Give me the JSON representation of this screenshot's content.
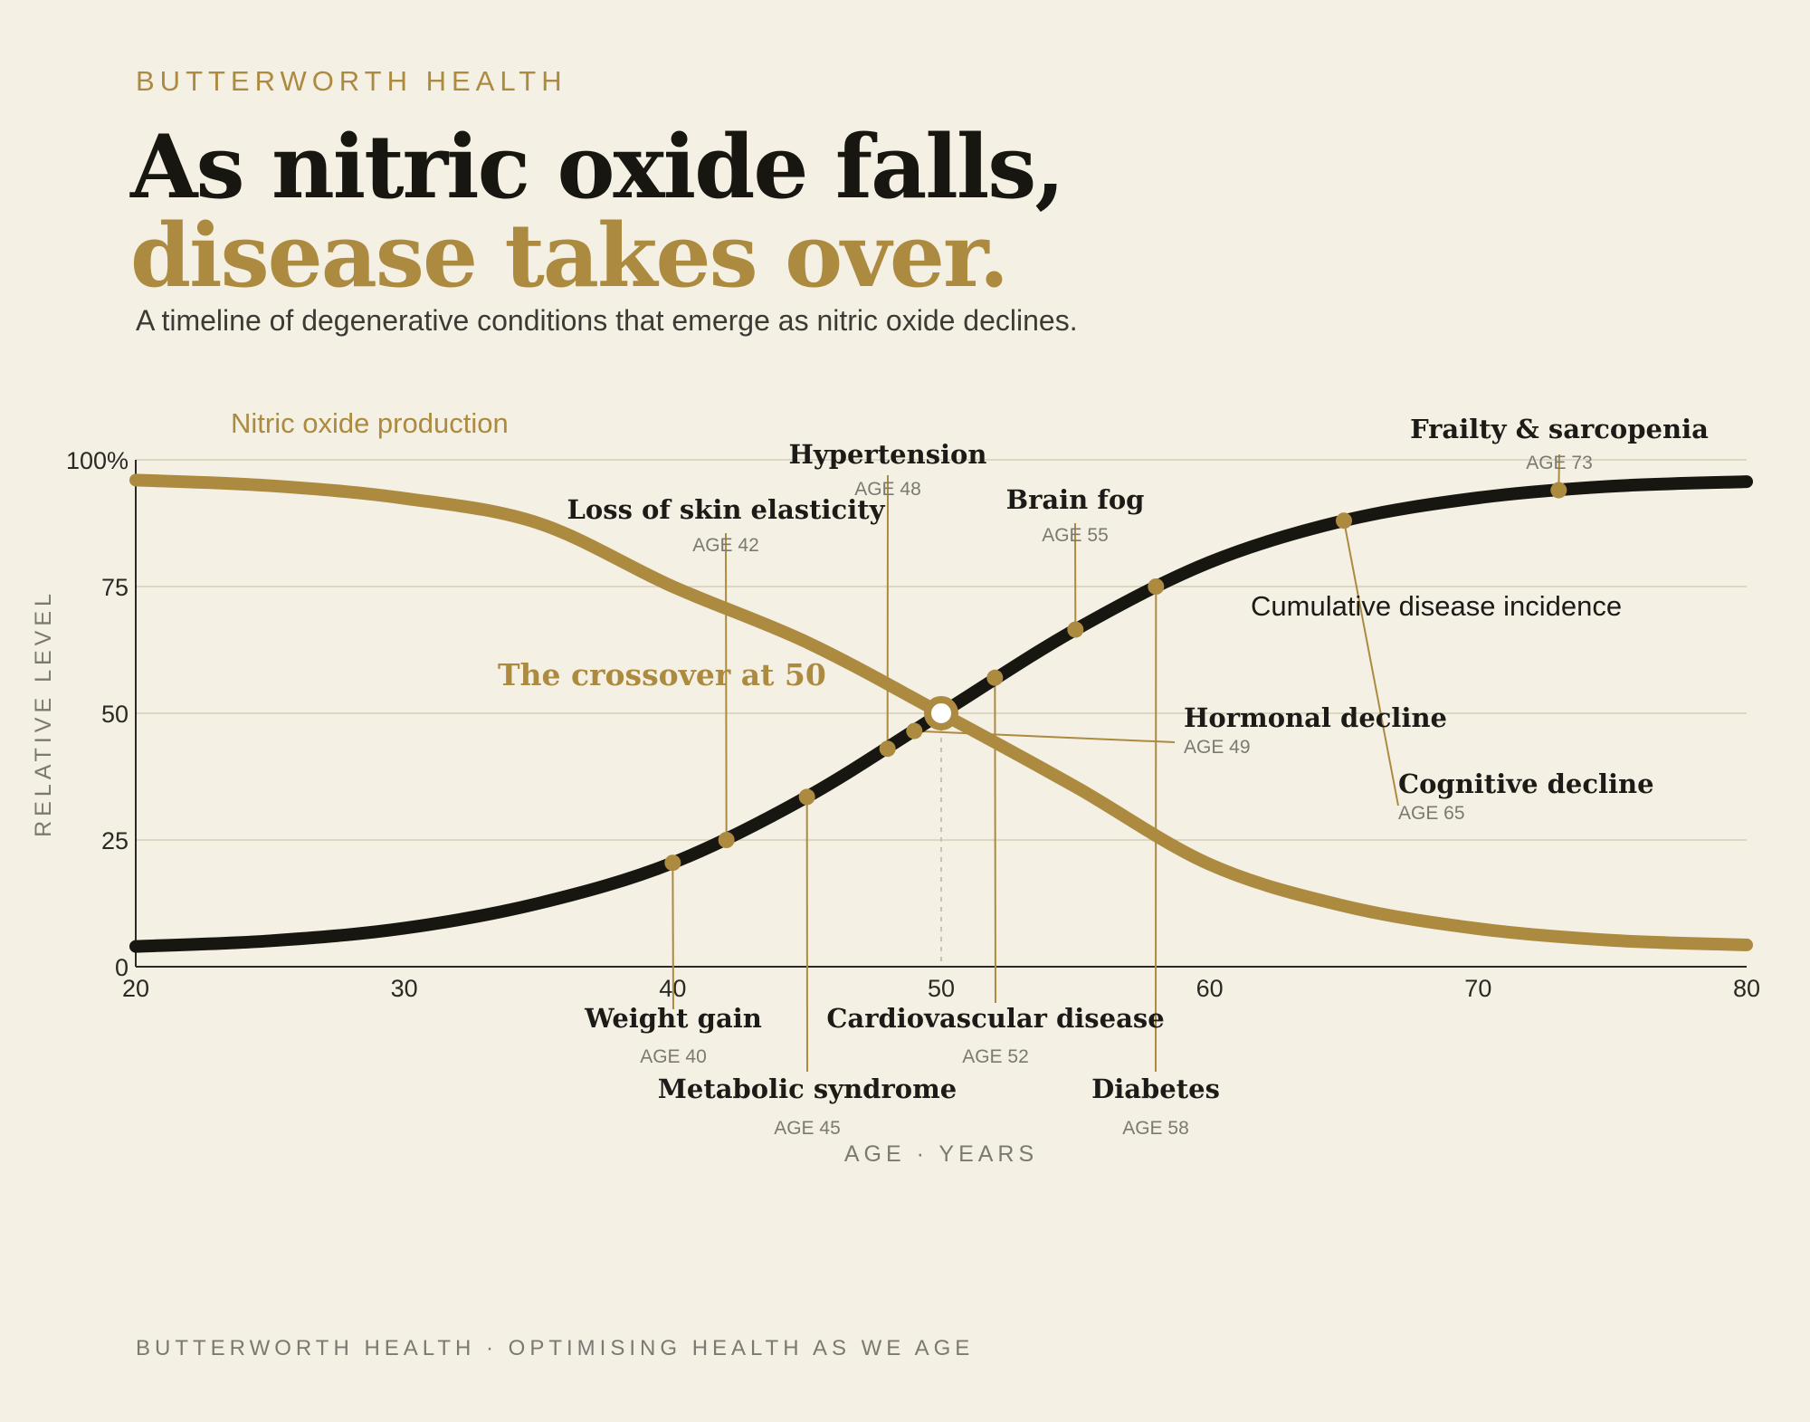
{
  "brand": "BUTTERWORTH HEALTH",
  "title": {
    "line1": "As nitric oxide falls,",
    "line2": "disease takes over."
  },
  "subtitle": "A timeline of degenerative conditions that emerge as nitric oxide declines.",
  "footer": "BUTTERWORTH HEALTH · OPTIMISING HEALTH AS WE AGE",
  "colors": {
    "accent": "#ac8a40",
    "dark": "#171611",
    "background": "#f4f0e4",
    "grid": "#dcd6c2",
    "muted": "#7b7a72"
  },
  "chart_data": {
    "type": "line",
    "xlabel": "AGE · YEARS",
    "ylabel": "RELATIVE LEVEL",
    "xlim": [
      20,
      80
    ],
    "ylim": [
      0,
      100
    ],
    "xticks": [
      "20",
      "30",
      "40",
      "50",
      "60",
      "70",
      "80"
    ],
    "yticks": [
      "0",
      "25",
      "50",
      "75",
      "100%"
    ],
    "grid": true,
    "series": [
      {
        "name": "Nitric oxide production",
        "color": "#ac8a40",
        "x": [
          20,
          25,
          30,
          35,
          40,
          45,
          50,
          55,
          60,
          65,
          70,
          75,
          80
        ],
        "y": [
          96,
          94.9,
          92.4,
          87.5,
          75,
          64,
          50,
          35.5,
          20.2,
          12,
          7.5,
          5.2,
          4.3
        ]
      },
      {
        "name": "Cumulative disease incidence",
        "color": "#171611",
        "x": [
          20,
          25,
          30,
          35,
          40,
          45,
          50,
          55,
          60,
          65,
          70,
          75,
          80
        ],
        "y": [
          4,
          5.1,
          7.6,
          12.5,
          20.5,
          33.5,
          50,
          66.5,
          79.8,
          88,
          92.5,
          94.8,
          95.7
        ]
      }
    ],
    "annotations": {
      "crossover": {
        "label": "The crossover at 50",
        "x": 50,
        "y": 50
      },
      "events": [
        {
          "name": "Weight gain",
          "age_label": "AGE 40",
          "age": 40,
          "y": 20.5
        },
        {
          "name": "Loss of skin elasticity",
          "age_label": "AGE 42",
          "age": 42,
          "y": 25
        },
        {
          "name": "Metabolic syndrome",
          "age_label": "AGE 45",
          "age": 45,
          "y": 33.5
        },
        {
          "name": "Hypertension",
          "age_label": "AGE 48",
          "age": 48,
          "y": 43
        },
        {
          "name": "Hormonal decline",
          "age_label": "AGE 49",
          "age": 49,
          "y": 46.5
        },
        {
          "name": "Cardiovascular disease",
          "age_label": "AGE 52",
          "age": 52,
          "y": 57
        },
        {
          "name": "Brain fog",
          "age_label": "AGE 55",
          "age": 55,
          "y": 66.5
        },
        {
          "name": "Diabetes",
          "age_label": "AGE 58",
          "age": 58,
          "y": 75
        },
        {
          "name": "Cognitive decline",
          "age_label": "AGE 65",
          "age": 65,
          "y": 88
        },
        {
          "name": "Frailty & sarcopenia",
          "age_label": "AGE 73",
          "age": 73,
          "y": 94
        }
      ]
    }
  }
}
